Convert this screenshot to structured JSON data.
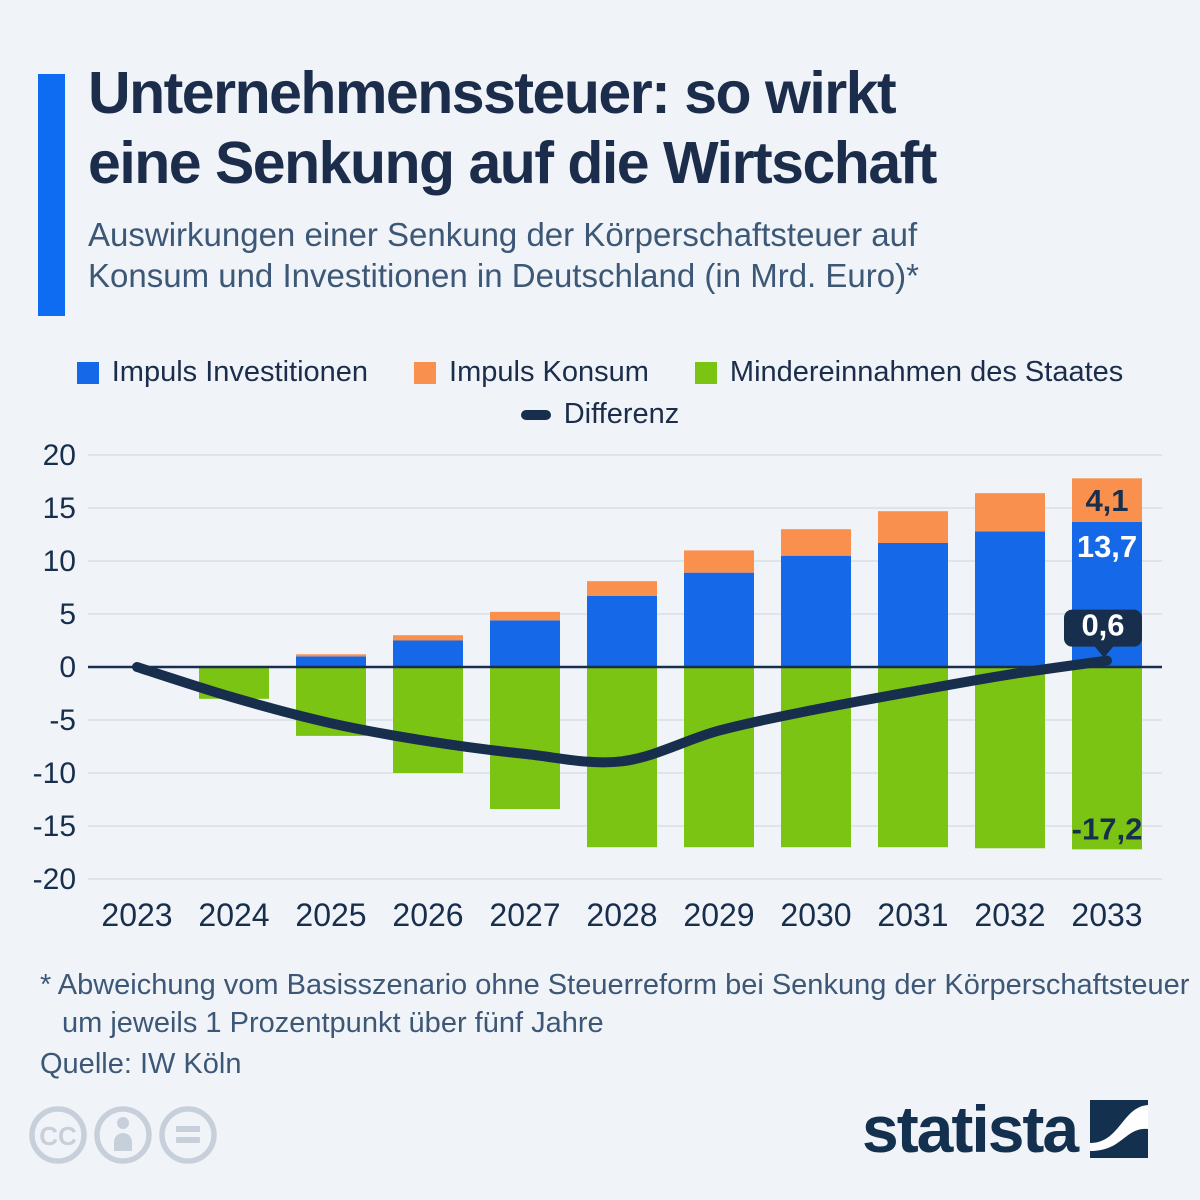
{
  "header": {
    "title_line1": "Unternehmenssteuer: so wirkt",
    "title_line2": "eine Senkung auf die Wirtschaft",
    "subtitle_line1": "Auswirkungen einer Senkung der Körperschaftsteuer auf",
    "subtitle_line2": "Konsum und Investitionen in Deutschland (in Mrd. Euro)*"
  },
  "legend": {
    "items": [
      {
        "label": "Impuls Investitionen",
        "color": "#1569e8"
      },
      {
        "label": "Impuls Konsum",
        "color": "#f9904e"
      },
      {
        "label": "Mindereinnahmen des Staates",
        "color": "#7cc413"
      }
    ],
    "line_item": {
      "label": "Differenz",
      "color": "#182e4d"
    }
  },
  "chart_data": {
    "type": "bar",
    "stacked": true,
    "grid": true,
    "legend_position": "top",
    "categories": [
      "2023",
      "2024",
      "2025",
      "2026",
      "2027",
      "2028",
      "2029",
      "2030",
      "2031",
      "2032",
      "2033"
    ],
    "series": [
      {
        "name": "Impuls Investitionen",
        "color": "#1569e8",
        "values": [
          0,
          0.1,
          1.0,
          2.5,
          4.4,
          6.7,
          8.9,
          10.5,
          11.7,
          12.8,
          13.7
        ]
      },
      {
        "name": "Impuls Konsum",
        "color": "#f9904e",
        "values": [
          0,
          0,
          0.2,
          0.5,
          0.8,
          1.4,
          2.1,
          2.5,
          3.0,
          3.6,
          4.1
        ]
      },
      {
        "name": "Mindereinnahmen des Staates",
        "color": "#7cc413",
        "values": [
          0,
          -3.0,
          -6.5,
          -10.0,
          -13.4,
          -17.0,
          -17.0,
          -17.0,
          -17.0,
          -17.1,
          -17.2
        ]
      }
    ],
    "line_series": {
      "name": "Differenz",
      "color": "#182e4d",
      "values": [
        0,
        -2.9,
        -5.3,
        -7.0,
        -8.2,
        -8.9,
        -6.0,
        -4.0,
        -2.3,
        -0.7,
        0.6
      ]
    },
    "ylim": [
      -20,
      20
    ],
    "yticks": [
      20,
      15,
      10,
      5,
      0,
      -5,
      -10,
      -15,
      -20
    ],
    "xlabel": "",
    "ylabel": "",
    "annotations": [
      {
        "id": "konsum-top",
        "text": "4,1"
      },
      {
        "id": "invest-top",
        "text": "13,7"
      },
      {
        "id": "differenz-end",
        "text": "0,6"
      },
      {
        "id": "minder-bottom",
        "text": "-17,2"
      }
    ]
  },
  "footnote": {
    "line1": "* Abweichung vom Basisszenario ohne Steuerreform bei Senkung der Körperschaftsteuer",
    "line2": "um jeweils 1 Prozentpunkt über fünf Jahre"
  },
  "source": "Quelle: IW Köln",
  "footer": {
    "logo_text": "statista",
    "license_icons": [
      "cc",
      "by",
      "nd"
    ]
  }
}
